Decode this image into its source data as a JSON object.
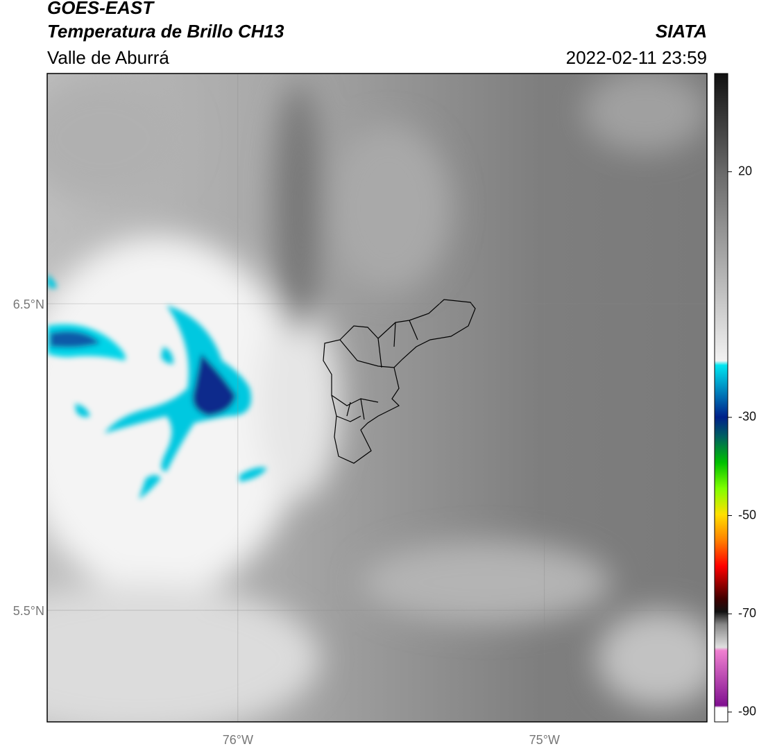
{
  "header": {
    "title": "GOES-EAST",
    "subtitle": "Temperatura de Brillo CH13",
    "region": "Valle de Aburrá",
    "source": "SIATA",
    "datetime": "2022-02-11 23:59"
  },
  "map": {
    "lonlim": [
      -76.622,
      -74.47
    ],
    "latlim": [
      5.136,
      7.251
    ],
    "lon_ticks": [
      {
        "value": -76,
        "label": "76°W"
      },
      {
        "value": -75,
        "label": "75°W"
      }
    ],
    "lat_ticks": [
      {
        "value": 6.5,
        "label": "6.5°N"
      },
      {
        "value": 5.5,
        "label": "5.5°N"
      }
    ]
  },
  "colorbar": {
    "lim": [
      -92,
      40
    ],
    "ticks": [
      20,
      -30,
      -50,
      -70,
      -90
    ]
  }
}
